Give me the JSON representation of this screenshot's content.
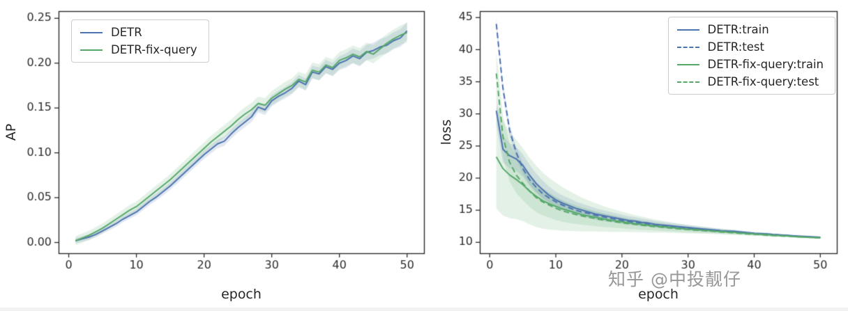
{
  "watermark": "知乎 @中投靓仔",
  "colors": {
    "blue": "#4C72B0",
    "green": "#55A868",
    "axis": "#2b2b2b",
    "band_alpha": 0.16
  },
  "chart_data": [
    {
      "type": "line",
      "title": "",
      "xlabel": "epoch",
      "ylabel": "AP",
      "xlim": [
        -1.5,
        52.5
      ],
      "ylim": [
        -0.012,
        0.258
      ],
      "xticks": [
        0,
        10,
        20,
        30,
        40,
        50
      ],
      "xtick_labels": [
        "0",
        "10",
        "20",
        "30",
        "40",
        "50"
      ],
      "yticks": [
        0,
        0.05,
        0.1,
        0.15,
        0.2,
        0.25
      ],
      "ytick_labels": [
        "0.00",
        "0.05",
        "0.10",
        "0.15",
        "0.20",
        "0.25"
      ],
      "legend_position": "top-left",
      "grid": false,
      "x": [
        1,
        2,
        3,
        4,
        5,
        6,
        7,
        8,
        9,
        10,
        11,
        12,
        13,
        14,
        15,
        16,
        17,
        18,
        19,
        20,
        21,
        22,
        23,
        24,
        25,
        26,
        27,
        28,
        29,
        30,
        31,
        32,
        33,
        34,
        35,
        36,
        37,
        38,
        39,
        40,
        41,
        42,
        43,
        44,
        45,
        46,
        47,
        48,
        49,
        50
      ],
      "series": [
        {
          "name": "DETR",
          "color": "blue",
          "dash": false,
          "band": [
            0.003,
            0.01
          ],
          "values": [
            0.002,
            0.004,
            0.006,
            0.009,
            0.013,
            0.017,
            0.021,
            0.026,
            0.03,
            0.034,
            0.04,
            0.046,
            0.051,
            0.057,
            0.063,
            0.07,
            0.077,
            0.084,
            0.091,
            0.098,
            0.104,
            0.11,
            0.113,
            0.121,
            0.128,
            0.134,
            0.14,
            0.151,
            0.148,
            0.158,
            0.163,
            0.167,
            0.172,
            0.18,
            0.176,
            0.19,
            0.188,
            0.196,
            0.193,
            0.2,
            0.203,
            0.208,
            0.205,
            0.212,
            0.214,
            0.218,
            0.22,
            0.225,
            0.228,
            0.236
          ]
        },
        {
          "name": "DETR-fix-query",
          "color": "green",
          "dash": false,
          "band": [
            0.005,
            0.011
          ],
          "values": [
            0.002,
            0.005,
            0.008,
            0.012,
            0.016,
            0.021,
            0.026,
            0.031,
            0.036,
            0.04,
            0.046,
            0.052,
            0.058,
            0.064,
            0.07,
            0.077,
            0.084,
            0.091,
            0.098,
            0.105,
            0.112,
            0.118,
            0.124,
            0.13,
            0.137,
            0.143,
            0.148,
            0.155,
            0.153,
            0.161,
            0.166,
            0.171,
            0.175,
            0.182,
            0.179,
            0.192,
            0.19,
            0.198,
            0.195,
            0.203,
            0.206,
            0.21,
            0.207,
            0.213,
            0.21,
            0.216,
            0.222,
            0.227,
            0.231,
            0.234
          ]
        }
      ]
    },
    {
      "type": "line",
      "title": "",
      "xlabel": "epoch",
      "ylabel": "loss",
      "xlim": [
        -1.5,
        52.5
      ],
      "ylim": [
        8.3,
        46.0
      ],
      "xticks": [
        0,
        10,
        20,
        30,
        40,
        50
      ],
      "xtick_labels": [
        "0",
        "10",
        "20",
        "30",
        "40",
        "50"
      ],
      "yticks": [
        10,
        15,
        20,
        25,
        30,
        35,
        40,
        45
      ],
      "ytick_labels": [
        "10",
        "15",
        "20",
        "25",
        "30",
        "35",
        "40",
        "45"
      ],
      "legend_position": "top-right",
      "grid": false,
      "x": [
        1,
        2,
        3,
        4,
        5,
        6,
        7,
        8,
        9,
        10,
        11,
        12,
        13,
        14,
        15,
        16,
        17,
        18,
        19,
        20,
        21,
        22,
        23,
        24,
        25,
        26,
        27,
        28,
        29,
        30,
        31,
        32,
        33,
        34,
        35,
        36,
        37,
        38,
        39,
        40,
        41,
        42,
        43,
        44,
        45,
        46,
        47,
        48,
        49,
        50
      ],
      "series": [
        {
          "name": "DETR:train",
          "color": "blue",
          "dash": false,
          "band": [
            2.2,
            0.12
          ],
          "values": [
            30.5,
            24.5,
            23.5,
            23.0,
            22.0,
            20.5,
            19.2,
            18.2,
            17.3,
            16.6,
            16.1,
            15.7,
            15.3,
            15.0,
            14.7,
            14.4,
            14.2,
            14.0,
            13.8,
            13.6,
            13.4,
            13.3,
            13.1,
            13.0,
            12.8,
            12.7,
            12.6,
            12.5,
            12.4,
            12.3,
            12.2,
            12.1,
            12.0,
            11.9,
            11.8,
            11.75,
            11.7,
            11.6,
            11.5,
            11.4,
            11.35,
            11.3,
            11.2,
            11.15,
            11.1,
            11.0,
            10.95,
            10.9,
            10.85,
            10.8
          ]
        },
        {
          "name": "DETR:test",
          "color": "blue",
          "dash": true,
          "band": [
            1.0,
            0.1
          ],
          "values": [
            44.0,
            34.0,
            27.5,
            24.0,
            21.5,
            19.8,
            18.6,
            17.6,
            16.9,
            16.3,
            15.8,
            15.4,
            15.0,
            14.7,
            14.5,
            14.2,
            14.0,
            13.8,
            13.6,
            13.4,
            13.25,
            13.1,
            13.0,
            12.85,
            12.7,
            12.6,
            12.5,
            12.4,
            12.3,
            12.2,
            12.1,
            12.05,
            11.95,
            11.9,
            11.8,
            11.7,
            11.65,
            11.55,
            11.5,
            11.4,
            11.3,
            11.25,
            11.2,
            11.1,
            11.05,
            11.0,
            10.9,
            10.85,
            10.8,
            10.75
          ]
        },
        {
          "name": "DETR-fix-query:train",
          "color": "green",
          "dash": false,
          "band": [
            8.0,
            0.12
          ],
          "values": [
            23.3,
            21.5,
            20.5,
            19.8,
            19.0,
            18.0,
            17.2,
            16.5,
            16.0,
            15.6,
            15.2,
            14.9,
            14.6,
            14.3,
            14.1,
            13.9,
            13.7,
            13.5,
            13.35,
            13.2,
            13.05,
            12.9,
            12.8,
            12.65,
            12.55,
            12.45,
            12.35,
            12.25,
            12.15,
            12.05,
            12.0,
            11.9,
            11.85,
            11.75,
            11.7,
            11.6,
            11.55,
            11.45,
            11.4,
            11.3,
            11.25,
            11.2,
            11.1,
            11.05,
            11.0,
            10.9,
            10.85,
            10.8,
            10.75,
            10.7
          ]
        },
        {
          "name": "DETR-fix-query:test",
          "color": "green",
          "dash": true,
          "band": [
            3.5,
            0.1
          ],
          "values": [
            36.3,
            26.5,
            22.5,
            20.5,
            19.2,
            18.0,
            17.0,
            16.3,
            15.8,
            15.3,
            14.9,
            14.6,
            14.35,
            14.1,
            13.9,
            13.7,
            13.5,
            13.35,
            13.2,
            13.05,
            12.9,
            12.8,
            12.65,
            12.55,
            12.45,
            12.35,
            12.25,
            12.15,
            12.05,
            12.0,
            11.9,
            11.85,
            11.75,
            11.7,
            11.6,
            11.55,
            11.45,
            11.4,
            11.3,
            11.25,
            11.2,
            11.1,
            11.05,
            11.0,
            10.95,
            10.9,
            10.85,
            10.8,
            10.75,
            10.7
          ]
        }
      ]
    }
  ]
}
